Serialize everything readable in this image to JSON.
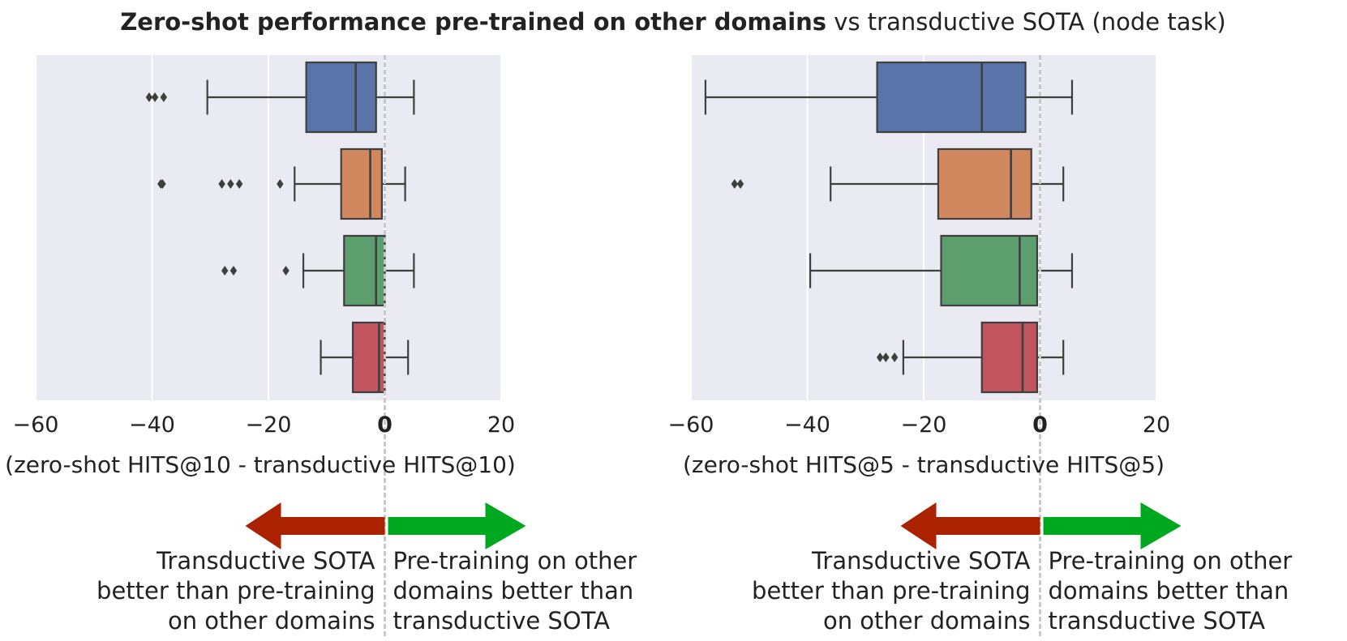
{
  "figure": {
    "title_bold": "Zero-shot performance pre-trained on other domains",
    "title_rest": "vs transductive SOTA (node task)"
  },
  "arrows": {
    "left_text": [
      "Transductive SOTA",
      "better than pre-training",
      "on other domains"
    ],
    "right_text": [
      "Pre-training on other",
      "domains better than",
      "transductive SOTA"
    ],
    "left_color": "#aa2200",
    "right_color": "#00a820"
  },
  "chart_data": [
    {
      "type": "box",
      "orientation": "horizontal",
      "xlabel": "(zero-shot HITS@10 - transductive HITS@10)",
      "xlim": [
        -60,
        20
      ],
      "xticks": [
        "−60",
        "−40",
        "−20",
        "0",
        "20"
      ],
      "xtick_values": [
        -60,
        -40,
        -20,
        0,
        20
      ],
      "reference_line": 0,
      "grid": true,
      "series": [
        {
          "color": "#5874a9",
          "whisker_low": -30.5,
          "q1": -13.5,
          "median": -5,
          "q3": -1.5,
          "whisker_high": 5,
          "outliers": [
            -40.5,
            -39.5,
            -38
          ]
        },
        {
          "color": "#d1885f",
          "whisker_low": -15.5,
          "q1": -7.5,
          "median": -2.5,
          "q3": -0.5,
          "whisker_high": 3.5,
          "outliers": [
            -38.5,
            -38.2,
            -28,
            -26.5,
            -25,
            -18
          ]
        },
        {
          "color": "#5d9e6e",
          "whisker_low": -14,
          "q1": -7,
          "median": -1.5,
          "q3": 0,
          "whisker_high": 5,
          "outliers": [
            -27.5,
            -26,
            -17
          ]
        },
        {
          "color": "#c0555e",
          "whisker_low": -11,
          "q1": -5.5,
          "median": -1,
          "q3": 0,
          "whisker_high": 4,
          "outliers": []
        }
      ]
    },
    {
      "type": "box",
      "orientation": "horizontal",
      "xlabel": "(zero-shot HITS@5 - transductive HITS@5)",
      "xlim": [
        -60,
        20
      ],
      "xticks": [
        "−60",
        "−40",
        "−20",
        "0",
        "20"
      ],
      "xtick_values": [
        -60,
        -40,
        -20,
        0,
        20
      ],
      "reference_line": 0,
      "grid": true,
      "series": [
        {
          "color": "#5874a9",
          "whisker_low": -57.5,
          "q1": -28,
          "median": -10,
          "q3": -2.5,
          "whisker_high": 5.5,
          "outliers": []
        },
        {
          "color": "#d1885f",
          "whisker_low": -36,
          "q1": -17.5,
          "median": -5,
          "q3": -1.5,
          "whisker_high": 4,
          "outliers": [
            -52.5,
            -51.5
          ]
        },
        {
          "color": "#5d9e6e",
          "whisker_low": -39.5,
          "q1": -17,
          "median": -3.5,
          "q3": -0.5,
          "whisker_high": 5.5,
          "outliers": []
        },
        {
          "color": "#c0555e",
          "whisker_low": -23.5,
          "q1": -10,
          "median": -3,
          "q3": -0.5,
          "whisker_high": 4,
          "outliers": [
            -27.5,
            -26.5,
            -25
          ]
        }
      ]
    }
  ]
}
